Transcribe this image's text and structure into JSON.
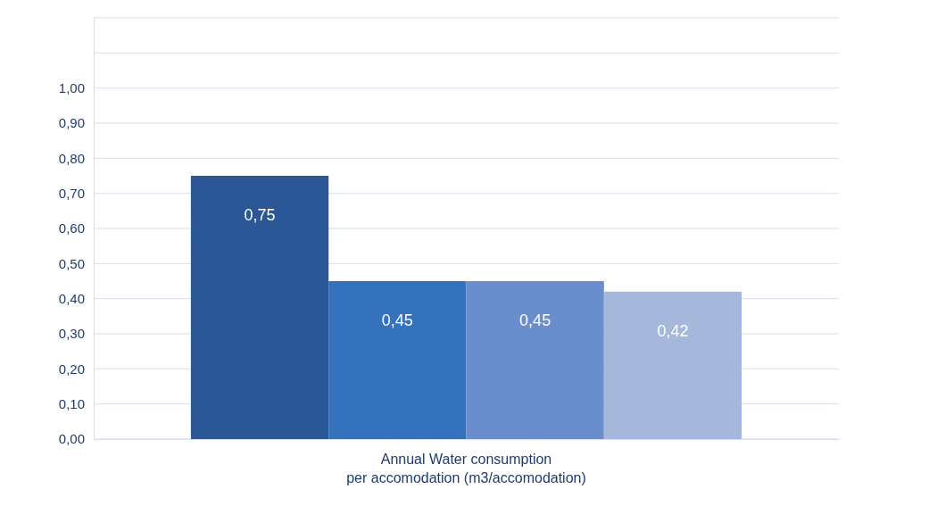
{
  "chart_data": {
    "type": "bar",
    "categories": [
      "Annual Water consumption\nper accomodation  (m3/accomodation)"
    ],
    "series": [
      {
        "color": "#2b5797",
        "values": [
          0.75
        ],
        "value_labels": [
          "0,75"
        ]
      },
      {
        "color": "#3572bd",
        "values": [
          0.45
        ],
        "value_labels": [
          "0,45"
        ]
      },
      {
        "color": "#6a8ecb",
        "values": [
          0.45
        ],
        "value_labels": [
          "0,45"
        ]
      },
      {
        "color": "#a6b7dc",
        "values": [
          0.42
        ],
        "value_labels": [
          "0,42"
        ]
      }
    ],
    "ylim": [
      0,
      1.2
    ],
    "yticks": [
      {
        "value": 0,
        "label": "0,00"
      },
      {
        "value": 0.1,
        "label": "0,10"
      },
      {
        "value": 0.2,
        "label": "0,20"
      },
      {
        "value": 0.3,
        "label": "0,30"
      },
      {
        "value": 0.4,
        "label": "0,40"
      },
      {
        "value": 0.5,
        "label": "0,50"
      },
      {
        "value": 0.6,
        "label": "0,60"
      },
      {
        "value": 0.7,
        "label": "0,70"
      },
      {
        "value": 0.8,
        "label": "0,80"
      },
      {
        "value": 0.9,
        "label": "0,90"
      },
      {
        "value": 1,
        "label": "1,00"
      },
      {
        "value": 1.1,
        "label": null
      },
      {
        "value": 1.2,
        "label": null
      }
    ],
    "grid": true
  }
}
